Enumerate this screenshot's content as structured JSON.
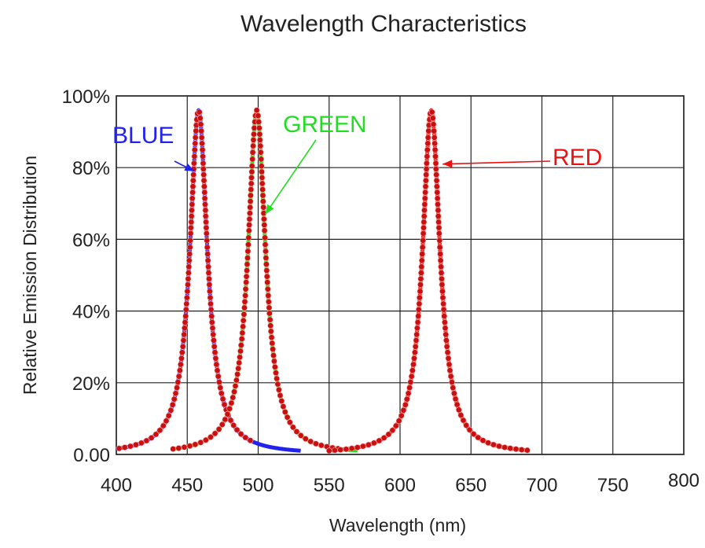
{
  "chart_data": {
    "type": "line",
    "title": "Wavelength Characteristics",
    "xlabel": "Wavelength (nm)",
    "ylabel": "Relative Emission Distribution",
    "xlim": [
      400,
      800
    ],
    "ylim": [
      0,
      100
    ],
    "x_ticks": [
      400,
      450,
      500,
      550,
      600,
      650,
      700,
      750,
      800
    ],
    "x_tick_labels": [
      "400",
      "450",
      "500",
      "550",
      "600",
      "650",
      "700",
      "750",
      "800"
    ],
    "y_ticks": [
      0,
      20,
      40,
      60,
      80,
      100
    ],
    "y_tick_labels": [
      "0.00",
      "20%",
      "40%",
      "60%",
      "80%",
      "100%"
    ],
    "grid": true,
    "colors": {
      "blue": "#2222ee",
      "green": "#22dd22",
      "red": "#ee1111",
      "markers": "#c81010",
      "grid": "#222222"
    },
    "series": [
      {
        "name": "BLUE",
        "color": "#2222ee",
        "peak_nm": 458,
        "peak_value": 96,
        "x_range": [
          400,
          530
        ]
      },
      {
        "name": "GREEN",
        "color": "#22dd22",
        "peak_nm": 499,
        "peak_value": 96,
        "x_range": [
          440,
          570
        ]
      },
      {
        "name": "RED",
        "color": "#ee1111",
        "peak_nm": 622,
        "peak_value": 96,
        "x_range": [
          550,
          690
        ]
      }
    ],
    "annotations": [
      {
        "text": "BLUE",
        "points_to_nm": 455,
        "points_to_value": 79
      },
      {
        "text": "GREEN",
        "points_to_nm": 505,
        "points_to_value": 67
      },
      {
        "text": "RED",
        "points_to_nm": 630,
        "points_to_value": 81
      }
    ]
  }
}
